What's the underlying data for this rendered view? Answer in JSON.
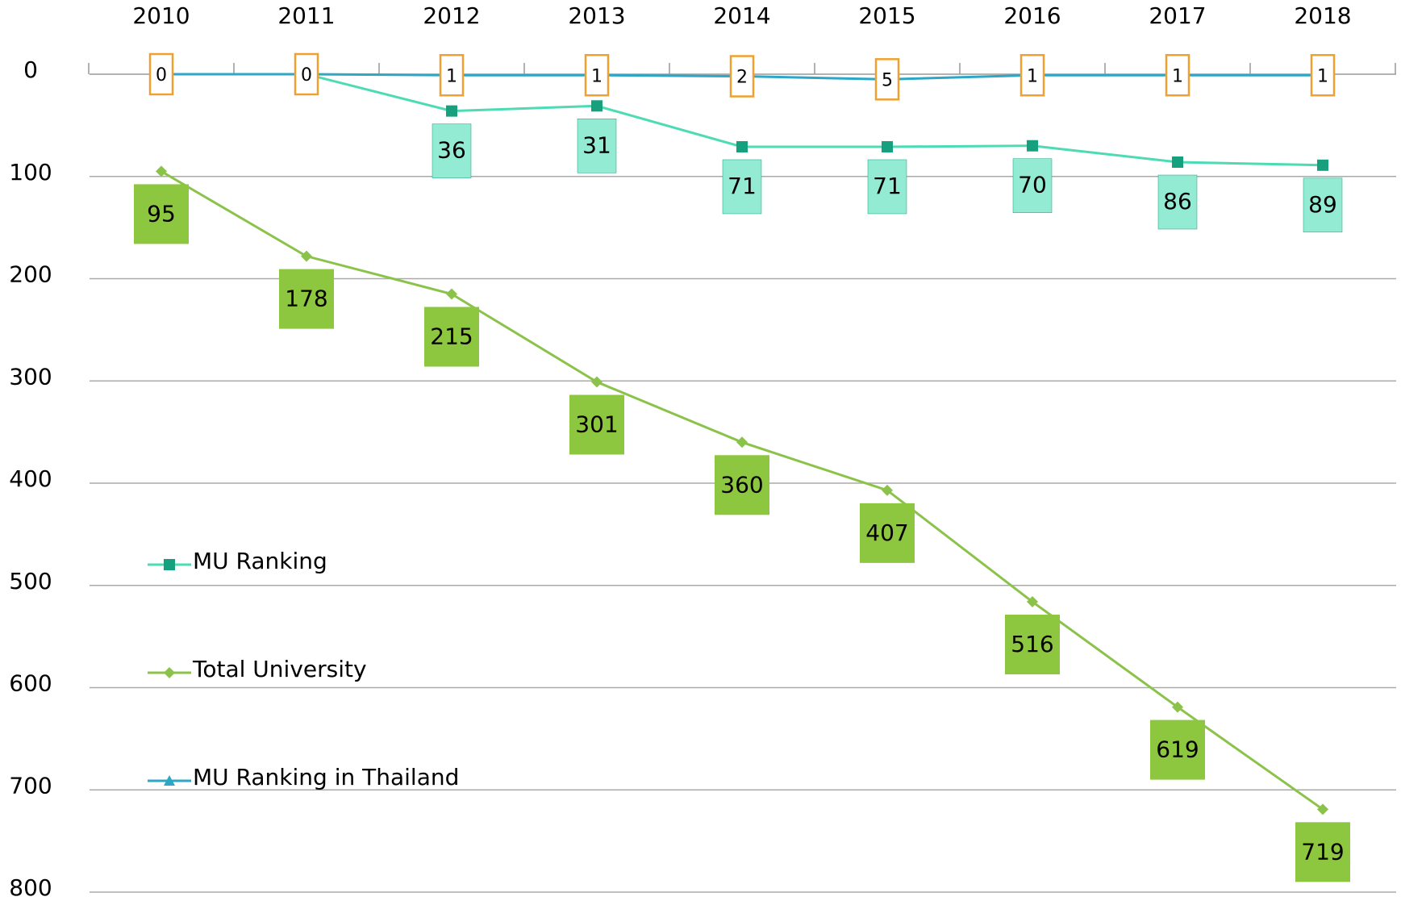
{
  "chart_data": {
    "type": "line",
    "categories": [
      "2010",
      "2011",
      "2012",
      "2013",
      "2014",
      "2015",
      "2016",
      "2017",
      "2018"
    ],
    "series": [
      {
        "name": "MU Ranking",
        "color": "#4ddbb4",
        "marker_color": "#16a07e",
        "label_color": "#93ebd3",
        "marker": "square",
        "values": [
          null,
          0,
          36,
          31,
          71,
          71,
          70,
          86,
          89
        ],
        "value_labels": [
          null,
          null,
          "36",
          "31",
          "71",
          "71",
          "70",
          "86",
          "89"
        ]
      },
      {
        "name": "Total University",
        "color": "#8bc34a",
        "marker_color": "#8bc34a",
        "label_color": "#8dc63f",
        "marker": "diamond",
        "values": [
          95,
          178,
          215,
          301,
          360,
          407,
          516,
          619,
          719
        ]
      },
      {
        "name": "MU Ranking in Thailand",
        "color": "#2ea6c6",
        "marker_color": "#2ea6c6",
        "label_color": "#ffffff",
        "label_border": "#f0a030",
        "marker": "triangle",
        "values": [
          0,
          0,
          1,
          1,
          2,
          5,
          1,
          1,
          1
        ]
      }
    ],
    "ylim": [
      0,
      800
    ],
    "yticks": [
      0,
      100,
      200,
      300,
      400,
      500,
      600,
      700,
      800
    ],
    "y_inverted": true,
    "grid": true,
    "legend": "left"
  }
}
